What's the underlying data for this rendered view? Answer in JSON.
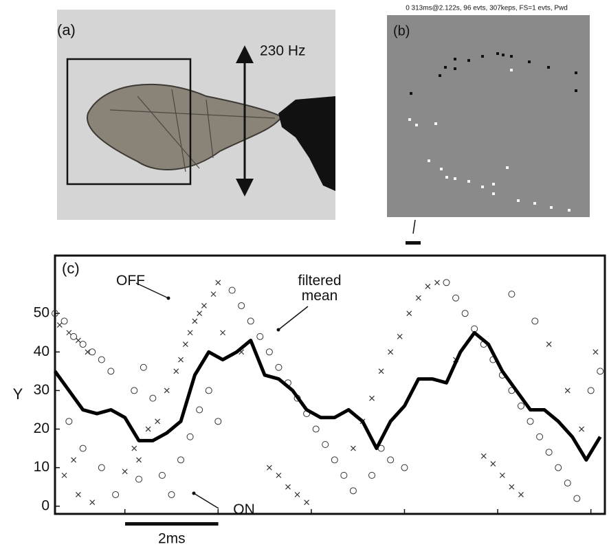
{
  "panel_a": {
    "label": "(a)",
    "annotation": "230 Hz"
  },
  "panel_b": {
    "label": "(b)",
    "header": "0 313ms@2.122s, 96 evts, 307keps, FS=1 evts, Pwd"
  },
  "chart_data": {
    "type": "scatter",
    "panel_label": "(c)",
    "y_label": "Y",
    "xlim": [
      0,
      11.8
    ],
    "xticks": [
      1.5,
      3.5,
      5.5,
      7.5,
      9.5,
      11.5
    ],
    "ylim": [
      -2,
      65
    ],
    "yticks": [
      0,
      10,
      20,
      30,
      40,
      50
    ],
    "scale_bar": {
      "value": 2,
      "label": "2ms"
    },
    "series": [
      {
        "name": "OFF",
        "marker": "x",
        "color": "#333333",
        "x": [
          0.1,
          0.3,
          0.5,
          0.7,
          0.2,
          0.5,
          0.8,
          0.4,
          1.5,
          1.7,
          1.8,
          2.0,
          2.2,
          2.4,
          2.6,
          2.8,
          2.9,
          3.0,
          3.2,
          3.4,
          3.5,
          3.1,
          2.7,
          3.6,
          4.0,
          4.6,
          4.8,
          5.0,
          5.2,
          5.4,
          6.4,
          6.6,
          6.8,
          7.0,
          7.2,
          7.4,
          7.6,
          7.8,
          8.0,
          8.2,
          8.6,
          9.2,
          9.4,
          9.6,
          9.8,
          10.0,
          10.6,
          11.0,
          11.3,
          11.6
        ],
        "values": [
          47,
          45,
          43,
          40,
          8,
          3,
          1,
          12,
          9,
          15,
          12,
          20,
          22,
          30,
          35,
          42,
          45,
          48,
          52,
          55,
          58,
          50,
          38,
          45,
          40,
          10,
          8,
          5,
          3,
          1,
          15,
          22,
          28,
          35,
          40,
          44,
          50,
          54,
          57,
          58,
          38,
          13,
          11,
          8,
          5,
          3,
          42,
          30,
          20,
          40
        ]
      },
      {
        "name": "ON",
        "marker": "o",
        "color": "#333333",
        "x": [
          0.0,
          0.2,
          0.4,
          0.6,
          0.8,
          1.0,
          1.2,
          0.3,
          0.6,
          1.0,
          1.3,
          1.8,
          1.7,
          1.9,
          2.1,
          2.3,
          2.5,
          2.7,
          2.9,
          3.1,
          3.3,
          3.5,
          3.8,
          4.0,
          4.2,
          4.4,
          4.6,
          4.8,
          5.0,
          5.2,
          5.4,
          5.6,
          5.8,
          6.0,
          6.2,
          6.4,
          6.8,
          7.0,
          7.2,
          7.5,
          8.4,
          8.6,
          8.8,
          9.0,
          9.2,
          9.4,
          9.6,
          9.8,
          10.0,
          10.2,
          10.4,
          10.6,
          10.8,
          11.0,
          11.2,
          11.5,
          11.7,
          9.8,
          10.3
        ],
        "values": [
          50,
          48,
          44,
          42,
          40,
          38,
          35,
          22,
          15,
          10,
          3,
          7,
          30,
          36,
          28,
          8,
          3,
          12,
          18,
          25,
          30,
          22,
          56,
          52,
          48,
          44,
          40,
          36,
          32,
          28,
          24,
          20,
          16,
          12,
          8,
          4,
          8,
          15,
          12,
          10,
          58,
          54,
          50,
          46,
          42,
          38,
          34,
          30,
          26,
          22,
          18,
          14,
          10,
          6,
          2,
          30,
          35,
          55,
          48
        ]
      },
      {
        "name": "filtered mean",
        "marker": "line",
        "color": "#000000",
        "x": [
          0,
          0.3,
          0.6,
          0.9,
          1.2,
          1.5,
          1.8,
          2.1,
          2.4,
          2.7,
          3.0,
          3.3,
          3.6,
          3.9,
          4.2,
          4.5,
          4.8,
          5.1,
          5.4,
          5.7,
          6.0,
          6.3,
          6.6,
          6.9,
          7.2,
          7.5,
          7.8,
          8.1,
          8.4,
          8.7,
          9.0,
          9.3,
          9.6,
          9.9,
          10.2,
          10.5,
          10.8,
          11.1,
          11.4,
          11.7
        ],
        "values": [
          35,
          30,
          25,
          24,
          25,
          23,
          17,
          17,
          19,
          22,
          34,
          40,
          38,
          40,
          43,
          34,
          33,
          30,
          25,
          23,
          23,
          25,
          22,
          15,
          22,
          26,
          33,
          33,
          32,
          40,
          45,
          42,
          35,
          30,
          25,
          25,
          22,
          18,
          12,
          18
        ]
      }
    ]
  }
}
